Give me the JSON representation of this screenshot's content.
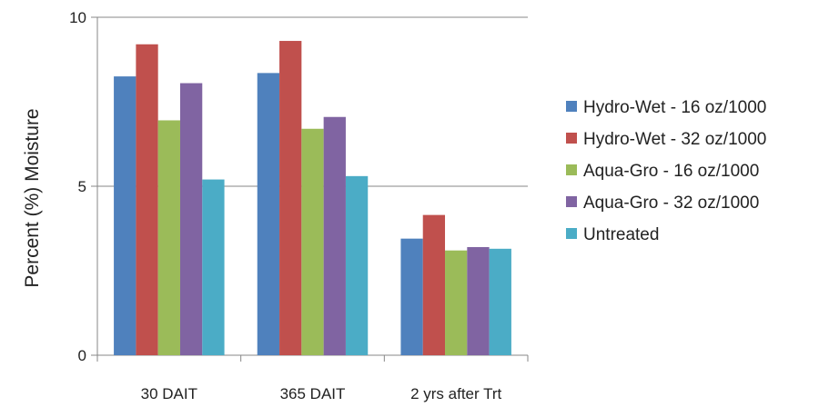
{
  "chart_data": {
    "type": "bar",
    "title": "",
    "xlabel": "",
    "ylabel": "Percent (%) Moisture",
    "ylim": [
      0,
      10
    ],
    "yticks": [
      0,
      5,
      10
    ],
    "grid": true,
    "legend_position": "right",
    "categories": [
      "30 DAIT",
      "365 DAIT",
      "2 yrs after Trt"
    ],
    "series": [
      {
        "name": "Hydro-Wet - 16 oz/1000",
        "color": "#4F81BD",
        "values": [
          8.25,
          8.35,
          3.45
        ]
      },
      {
        "name": "Hydro-Wet - 32 oz/1000",
        "color": "#C0504D",
        "values": [
          9.2,
          9.3,
          4.15
        ]
      },
      {
        "name": "Aqua-Gro - 16 oz/1000",
        "color": "#9BBB59",
        "values": [
          6.95,
          6.7,
          3.1
        ]
      },
      {
        "name": "Aqua-Gro - 32 oz/1000",
        "color": "#8064A2",
        "values": [
          8.05,
          7.05,
          3.2
        ]
      },
      {
        "name": "Untreated",
        "color": "#4BACC6",
        "values": [
          5.2,
          5.3,
          3.15
        ]
      }
    ]
  }
}
